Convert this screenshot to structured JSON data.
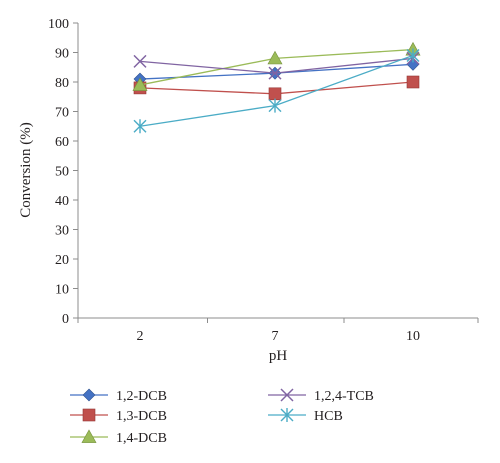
{
  "chart_data": {
    "type": "line",
    "categories": [
      "2",
      "7",
      "10"
    ],
    "xlabel": "pH",
    "ylabel": "Conversion (%)",
    "ylim": [
      0,
      100
    ],
    "yticks": [
      0,
      10,
      20,
      30,
      40,
      50,
      60,
      70,
      80,
      90,
      100
    ],
    "grid": false,
    "legend_placement": "bottom",
    "series": [
      {
        "name": "1,2-DCB",
        "values": [
          81,
          83,
          86
        ],
        "color": "#4472c4",
        "marker": "diamond"
      },
      {
        "name": "1,3-DCB",
        "values": [
          78,
          76,
          80
        ],
        "color": "#c0504d",
        "marker": "square"
      },
      {
        "name": "1,4-DCB",
        "values": [
          79,
          88,
          91
        ],
        "color": "#9bbb59",
        "marker": "triangle"
      },
      {
        "name": "1,2,4-TCB",
        "values": [
          87,
          83,
          88
        ],
        "color": "#8064a2",
        "marker": "x"
      },
      {
        "name": "HCB",
        "values": [
          65,
          72,
          89
        ],
        "color": "#4bacc6",
        "marker": "star"
      }
    ]
  }
}
